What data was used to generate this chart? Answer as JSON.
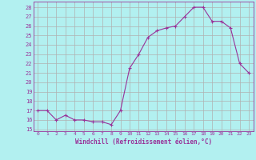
{
  "x": [
    0,
    1,
    2,
    3,
    4,
    5,
    6,
    7,
    8,
    9,
    10,
    11,
    12,
    13,
    14,
    15,
    16,
    17,
    18,
    19,
    20,
    21,
    22,
    23
  ],
  "y": [
    17,
    17,
    16,
    16.5,
    16,
    16,
    15.8,
    15.8,
    15.5,
    17,
    21.5,
    23,
    24.8,
    25.5,
    25.8,
    26,
    27,
    28,
    28,
    26.5,
    26.5,
    25.8,
    22,
    21
  ],
  "line_color": "#993399",
  "marker": "+",
  "bg_color": "#b2f0f0",
  "grid_color": "#b0b0b0",
  "xlabel": "Windchill (Refroidissement éolien,°C)",
  "ylim": [
    14.8,
    28.6
  ],
  "yticks": [
    15,
    16,
    17,
    18,
    19,
    20,
    21,
    22,
    23,
    24,
    25,
    26,
    27,
    28
  ],
  "xlim": [
    -0.5,
    23.5
  ],
  "xticks": [
    0,
    1,
    2,
    3,
    4,
    5,
    6,
    7,
    8,
    9,
    10,
    11,
    12,
    13,
    14,
    15,
    16,
    17,
    18,
    19,
    20,
    21,
    22,
    23
  ],
  "line_color_hex": "#993399",
  "text_color": "#993399"
}
